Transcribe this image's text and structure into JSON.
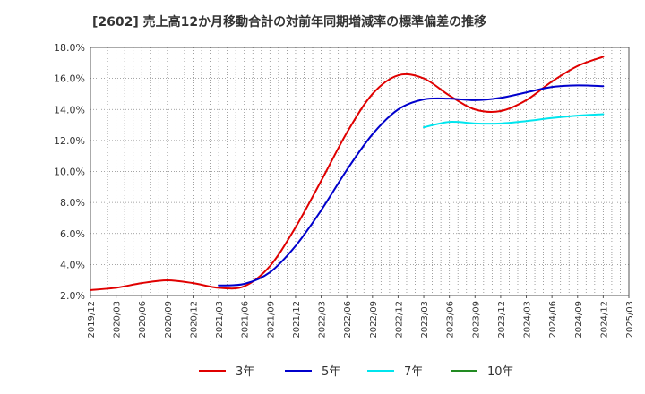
{
  "chart_data": {
    "type": "line",
    "title": "[2602]  売上高12か月移動合計の対前年同期増減率の標準偏差の推移",
    "xlabel": "",
    "ylabel": "",
    "ylim": [
      2.0,
      18.0
    ],
    "y_ticks": [
      "2.0%",
      "4.0%",
      "6.0%",
      "8.0%",
      "10.0%",
      "12.0%",
      "14.0%",
      "16.0%",
      "18.0%"
    ],
    "x_ticks": [
      "2019/12",
      "2020/03",
      "2020/06",
      "2020/09",
      "2020/12",
      "2021/03",
      "2021/06",
      "2021/09",
      "2021/12",
      "2022/03",
      "2022/06",
      "2022/09",
      "2022/12",
      "2023/03",
      "2023/06",
      "2023/09",
      "2023/12",
      "2024/03",
      "2024/06",
      "2024/09",
      "2024/12",
      "2025/03"
    ],
    "grid": true,
    "legend_position": "bottom",
    "series": [
      {
        "name": "3年",
        "color": "#e00000",
        "points": [
          [
            "2019/12",
            2.35
          ],
          [
            "2020/03",
            2.5
          ],
          [
            "2020/06",
            2.8
          ],
          [
            "2020/09",
            2.98
          ],
          [
            "2020/12",
            2.8
          ],
          [
            "2021/03",
            2.5
          ],
          [
            "2021/06",
            2.6
          ],
          [
            "2021/09",
            3.9
          ],
          [
            "2021/12",
            6.4
          ],
          [
            "2022/03",
            9.4
          ],
          [
            "2022/06",
            12.5
          ],
          [
            "2022/09",
            15.0
          ],
          [
            "2022/12",
            16.2
          ],
          [
            "2023/03",
            16.0
          ],
          [
            "2023/06",
            14.9
          ],
          [
            "2023/09",
            14.0
          ],
          [
            "2023/12",
            13.9
          ],
          [
            "2024/03",
            14.6
          ],
          [
            "2024/06",
            15.8
          ],
          [
            "2024/09",
            16.8
          ],
          [
            "2024/12",
            17.4
          ]
        ]
      },
      {
        "name": "5年",
        "color": "#0000cc",
        "points": [
          [
            "2021/03",
            2.65
          ],
          [
            "2021/06",
            2.75
          ],
          [
            "2021/09",
            3.5
          ],
          [
            "2021/12",
            5.2
          ],
          [
            "2022/03",
            7.5
          ],
          [
            "2022/06",
            10.1
          ],
          [
            "2022/09",
            12.4
          ],
          [
            "2022/12",
            14.0
          ],
          [
            "2023/03",
            14.65
          ],
          [
            "2023/06",
            14.7
          ],
          [
            "2023/09",
            14.6
          ],
          [
            "2023/12",
            14.75
          ],
          [
            "2024/03",
            15.1
          ],
          [
            "2024/06",
            15.45
          ],
          [
            "2024/09",
            15.55
          ],
          [
            "2024/12",
            15.5
          ]
        ]
      },
      {
        "name": "7年",
        "color": "#00e5ee",
        "points": [
          [
            "2023/03",
            12.85
          ],
          [
            "2023/06",
            13.2
          ],
          [
            "2023/09",
            13.1
          ],
          [
            "2023/12",
            13.1
          ],
          [
            "2024/03",
            13.25
          ],
          [
            "2024/06",
            13.45
          ],
          [
            "2024/09",
            13.6
          ],
          [
            "2024/12",
            13.7
          ]
        ]
      },
      {
        "name": "10年",
        "color": "#228b22",
        "points": []
      }
    ]
  }
}
